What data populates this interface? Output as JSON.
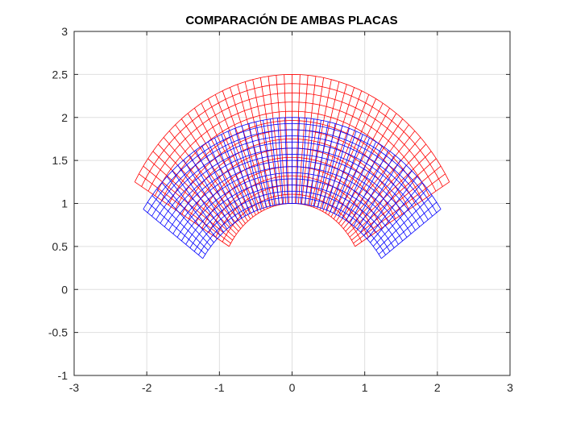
{
  "chart_data": {
    "type": "line",
    "title": "COMPARACIÓN DE AMBAS PLACAS",
    "xlabel": "",
    "ylabel": "",
    "xlim": [
      -3,
      3
    ],
    "ylim": [
      -1,
      3
    ],
    "x_ticks": [
      -3,
      -2,
      -1,
      0,
      1,
      2,
      3
    ],
    "y_ticks": [
      -1,
      -0.5,
      0,
      0.5,
      1,
      1.5,
      2,
      2.5,
      3
    ],
    "x_tick_labels": [
      "-3",
      "-2",
      "-1",
      "0",
      "1",
      "2",
      "3"
    ],
    "y_tick_labels": [
      "-1",
      "-0.5",
      "0",
      "0.5",
      "1",
      "1.5",
      "2",
      "2.5",
      "3"
    ],
    "grid": true,
    "legend": "none",
    "series": [
      {
        "kind": "polar-mesh",
        "color": "#ff0000",
        "center": [
          0,
          0
        ],
        "r_range": [
          1.0,
          2.5
        ],
        "theta_range_deg": [
          30,
          150
        ]
      },
      {
        "kind": "polar-mesh",
        "color": "#0000ff",
        "center": [
          0,
          -0.5
        ],
        "r_range": [
          1.5,
          2.5
        ],
        "theta_range_deg": [
          35,
          145
        ]
      }
    ]
  }
}
